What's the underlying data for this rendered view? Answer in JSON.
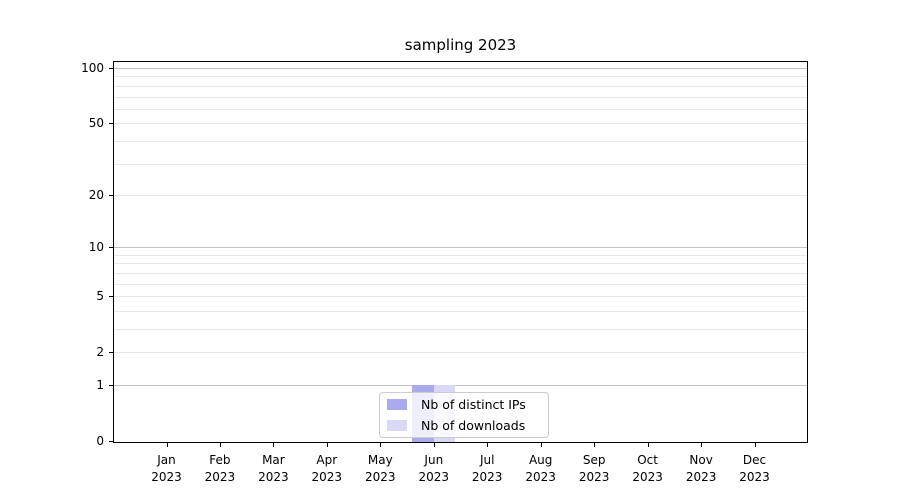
{
  "chart_data": {
    "type": "bar",
    "title": "sampling 2023",
    "categories": [
      "Jan 2023",
      "Feb 2023",
      "Mar 2023",
      "Apr 2023",
      "May 2023",
      "Jun 2023",
      "Jul 2023",
      "Aug 2023",
      "Sep 2023",
      "Oct 2023",
      "Nov 2023",
      "Dec 2023"
    ],
    "series": [
      {
        "name": "Nb of distinct IPs",
        "color": "#aaaaee",
        "values": [
          0,
          0,
          0,
          0,
          0,
          1,
          0,
          0,
          0,
          0,
          0,
          0
        ]
      },
      {
        "name": "Nb of downloads",
        "color": "#d9d9f6",
        "values": [
          0,
          0,
          0,
          0,
          0,
          1,
          0,
          0,
          0,
          0,
          0,
          0
        ]
      }
    ],
    "xlabel": "",
    "ylabel": "",
    "y_scale": "log1p",
    "y_axis_ticks": [
      0,
      1,
      2,
      5,
      10,
      20,
      50,
      100
    ],
    "y_major_gridlines": [
      1,
      10,
      100
    ],
    "y_minor_gridlines": [
      2,
      3,
      4,
      5,
      6,
      7,
      8,
      9,
      20,
      30,
      40,
      50,
      60,
      70,
      80,
      90
    ],
    "ylim": [
      0,
      107
    ],
    "grid": true,
    "legend_position": "lower center"
  },
  "legend": {
    "items": [
      "Nb of distinct IPs",
      "Nb of downloads"
    ]
  },
  "colors": {
    "bar_distinct_ips": "#aaaaee",
    "bar_downloads": "#d9d9f6",
    "grid_major": "#c2c2c2",
    "grid_minor": "#e7e7e7",
    "spine": "#000000",
    "text": "#000000",
    "legend_border": "#cccccc"
  }
}
